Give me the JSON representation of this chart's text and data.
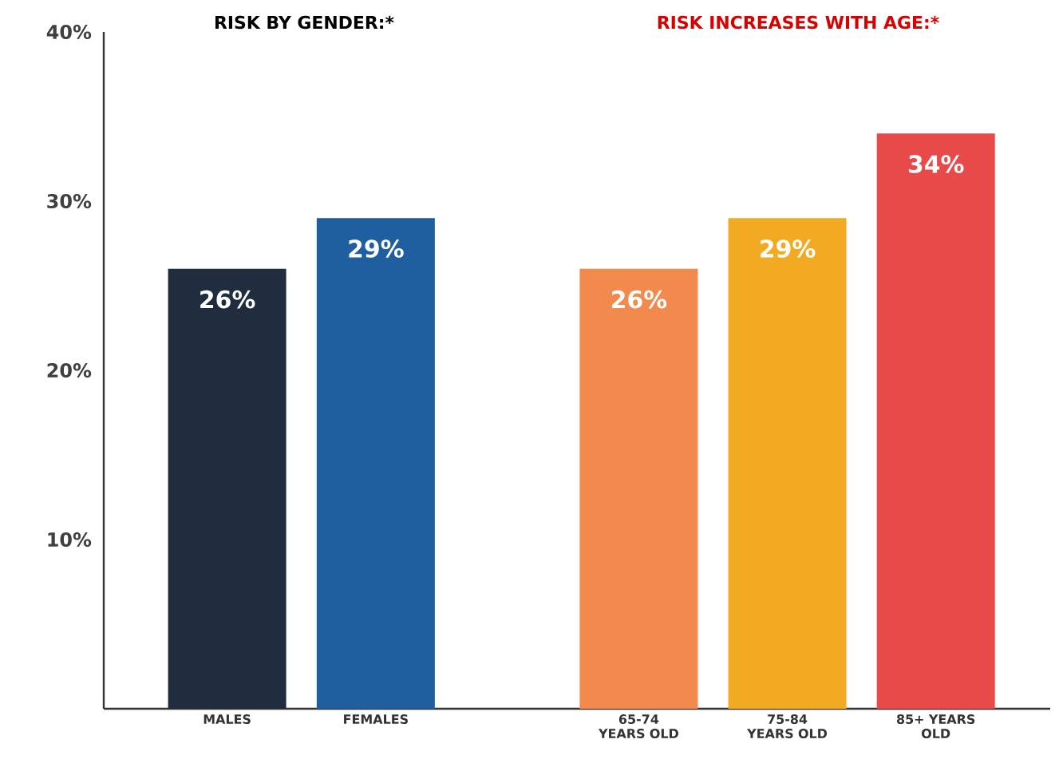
{
  "chart_data": [
    {
      "type": "bar",
      "title": "RISK BY GENDER:*",
      "categories": [
        "MALES",
        "FEMALES"
      ],
      "values": [
        26,
        29
      ],
      "colors": [
        "#1f2d3f",
        "#1f5fa0"
      ],
      "value_labels": [
        "26%",
        "29%"
      ],
      "ylim": [
        0,
        40
      ],
      "yticks": [
        {
          "value": 10,
          "label": "10%"
        },
        {
          "value": 20,
          "label": "20%"
        },
        {
          "value": 30,
          "label": "30%"
        },
        {
          "value": 40,
          "label": "40%"
        }
      ],
      "grid": false
    },
    {
      "type": "bar",
      "title": "RISK INCREASES WITH AGE:*",
      "categories": [
        "65-74 YEARS OLD",
        "75-84 YEARS OLD",
        "85+ YEARS OLD"
      ],
      "values": [
        26,
        29,
        34
      ],
      "colors": [
        "#f28a4e",
        "#f2aa22",
        "#e84a4a"
      ],
      "value_labels": [
        "26%",
        "29%",
        "34%"
      ],
      "ylim": [
        0,
        40
      ],
      "tick_labels": "x",
      "grid": false
    }
  ]
}
